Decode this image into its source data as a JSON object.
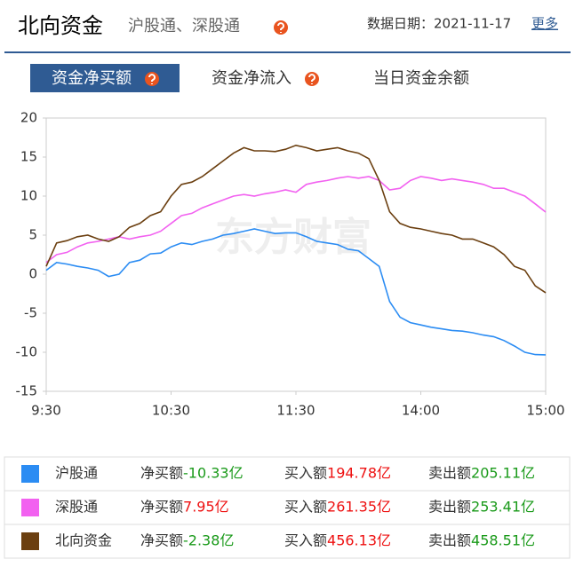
{
  "header": {
    "title": "北向资金",
    "subtitle": "沪股通、深股通",
    "date": "数据日期：2021-11-17",
    "more": "更多"
  },
  "tabs": [
    "资金净买额",
    "资金净流入",
    "当日资金余额"
  ],
  "watermark": "东方财富",
  "chart_data": {
    "type": "line",
    "x": [
      "9:30",
      null,
      null,
      null,
      null,
      null,
      null,
      null,
      null,
      null,
      null,
      null,
      "10:30",
      null,
      null,
      null,
      null,
      null,
      null,
      null,
      null,
      null,
      null,
      null,
      "11:30",
      null,
      null,
      null,
      null,
      null,
      null,
      null,
      null,
      null,
      null,
      null,
      "14:00",
      null,
      null,
      null,
      null,
      null,
      null,
      null,
      null,
      null,
      null,
      null,
      "15:00"
    ],
    "ylim": [
      -15,
      20
    ],
    "yticks": [
      20,
      15,
      10,
      5,
      0,
      -5,
      -10,
      -15
    ],
    "series": [
      {
        "name": "沪股通",
        "color": "#2b8cf3",
        "values": [
          0.5,
          1.5,
          1.3,
          1,
          0.8,
          0.5,
          -0.3,
          0,
          1.5,
          1.8,
          2.6,
          2.7,
          3.5,
          4.0,
          3.8,
          4.2,
          4.5,
          5.0,
          5.2,
          5.5,
          5.8,
          5.5,
          5.2,
          5.3,
          5.3,
          4.8,
          4.2,
          4.0,
          3.8,
          3.2,
          3.0,
          2.0,
          1.0,
          -3.5,
          -5.5,
          -6.2,
          -6.5,
          -6.8,
          -7.0,
          -7.2,
          -7.3,
          -7.5,
          -7.8,
          -8.0,
          -8.5,
          -9.2,
          -10.0,
          -10.3,
          -10.33
        ]
      },
      {
        "name": "深股通",
        "color": "#f261f0",
        "values": [
          1.5,
          2.5,
          2.8,
          3.5,
          4.0,
          4.2,
          4.5,
          4.8,
          4.5,
          4.8,
          5.0,
          5.5,
          6.5,
          7.5,
          7.8,
          8.5,
          9.0,
          9.5,
          10.0,
          10.2,
          10.0,
          10.3,
          10.5,
          10.8,
          10.5,
          11.5,
          11.8,
          12.0,
          12.3,
          12.5,
          12.3,
          12.5,
          12.0,
          10.8,
          11.0,
          12.0,
          12.5,
          12.3,
          12.0,
          12.2,
          12.0,
          11.8,
          11.5,
          11.0,
          11.0,
          10.5,
          10.0,
          9.0,
          7.95
        ]
      },
      {
        "name": "北向资金",
        "color": "#6b3f10",
        "values": [
          1,
          4.0,
          4.3,
          4.8,
          5.0,
          4.5,
          4.2,
          4.8,
          6.0,
          6.5,
          7.5,
          8.0,
          10.0,
          11.5,
          11.8,
          12.5,
          13.5,
          14.5,
          15.5,
          16.2,
          15.8,
          15.8,
          15.7,
          16.0,
          16.5,
          16.2,
          15.8,
          16.0,
          16.2,
          15.8,
          15.5,
          14.8,
          12.0,
          8.0,
          6.5,
          6.0,
          5.8,
          5.5,
          5.2,
          5.0,
          4.5,
          4.5,
          4.0,
          3.5,
          2.5,
          1.0,
          0.5,
          -1.5,
          -2.38
        ]
      }
    ]
  },
  "summary": {
    "headers": [
      "净买额",
      "买入额",
      "卖出额"
    ],
    "rows": [
      [
        "-10.33亿",
        "194.78亿",
        "205.11亿"
      ],
      [
        "7.95亿",
        "261.35亿",
        "253.41亿"
      ],
      [
        "-2.38亿",
        "456.13亿",
        "458.51亿"
      ]
    ]
  }
}
